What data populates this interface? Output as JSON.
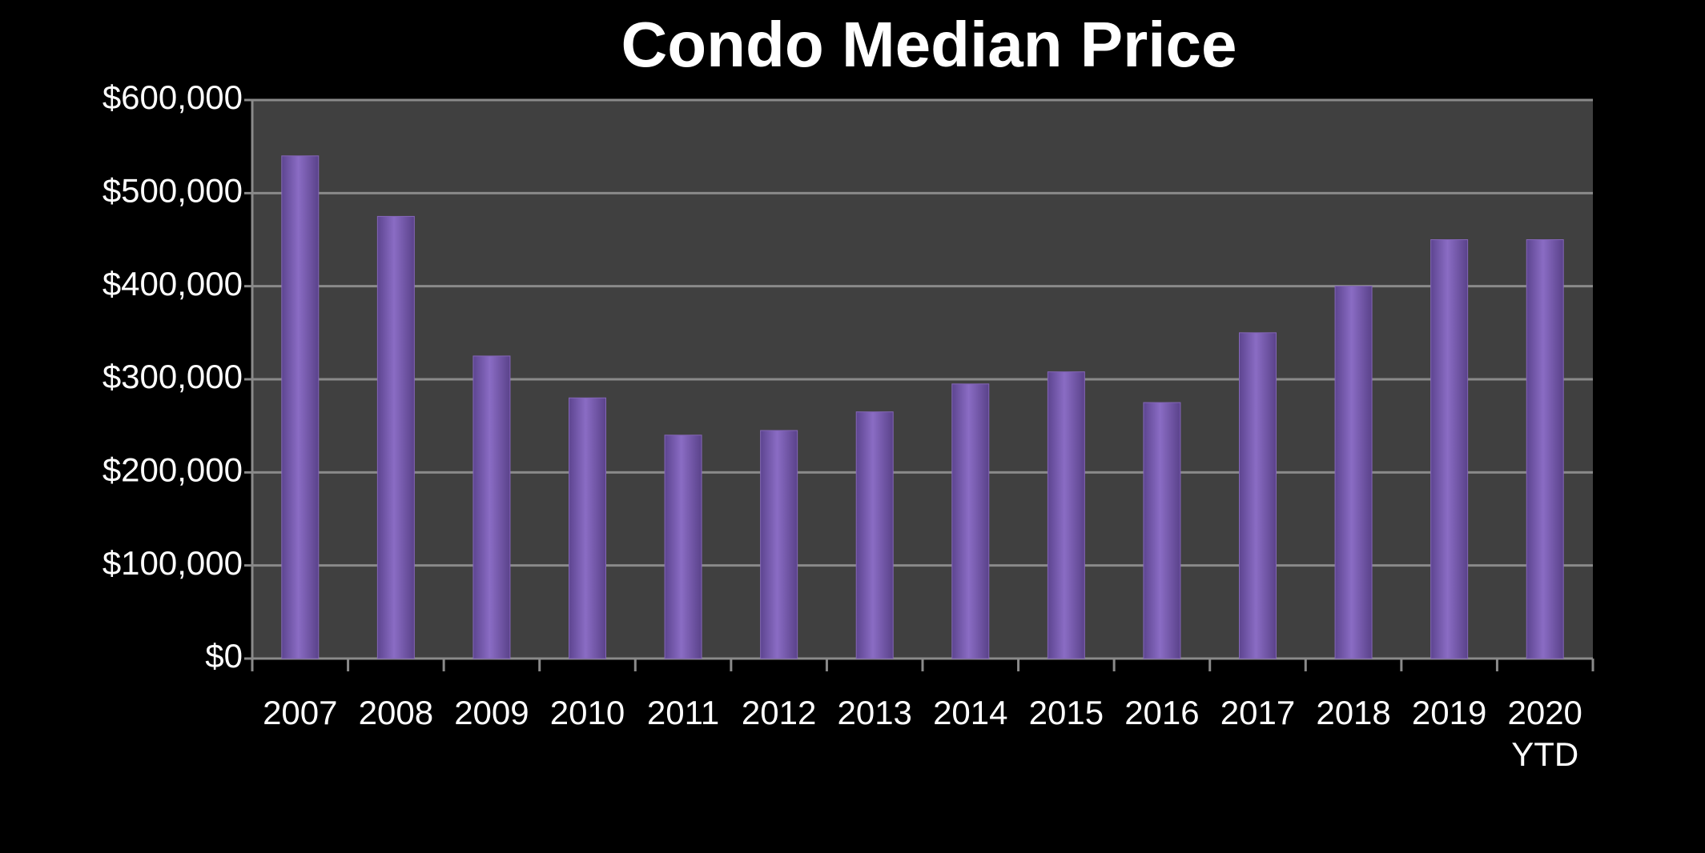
{
  "chart_data": {
    "type": "bar",
    "title": "Condo Median Price",
    "categories": [
      "2007",
      "2008",
      "2009",
      "2010",
      "2011",
      "2012",
      "2013",
      "2014",
      "2015",
      "2016",
      "2017",
      "2018",
      "2019",
      "2020 YTD"
    ],
    "values": [
      540000,
      475000,
      325000,
      280000,
      240000,
      245000,
      265000,
      295000,
      308000,
      275000,
      350000,
      400000,
      450000,
      450000
    ],
    "color": "#8466b8",
    "ylim": [
      0,
      600000
    ],
    "yticks": [
      {
        "value": 0,
        "label": "$0"
      },
      {
        "value": 100000,
        "label": "$100,000"
      },
      {
        "value": 200000,
        "label": "$200,000"
      },
      {
        "value": 300000,
        "label": "$300,000"
      },
      {
        "value": 400000,
        "label": "$400,000"
      },
      {
        "value": 500000,
        "label": "$500,000"
      },
      {
        "value": 600000,
        "label": "$600,000"
      }
    ],
    "grid": true
  }
}
